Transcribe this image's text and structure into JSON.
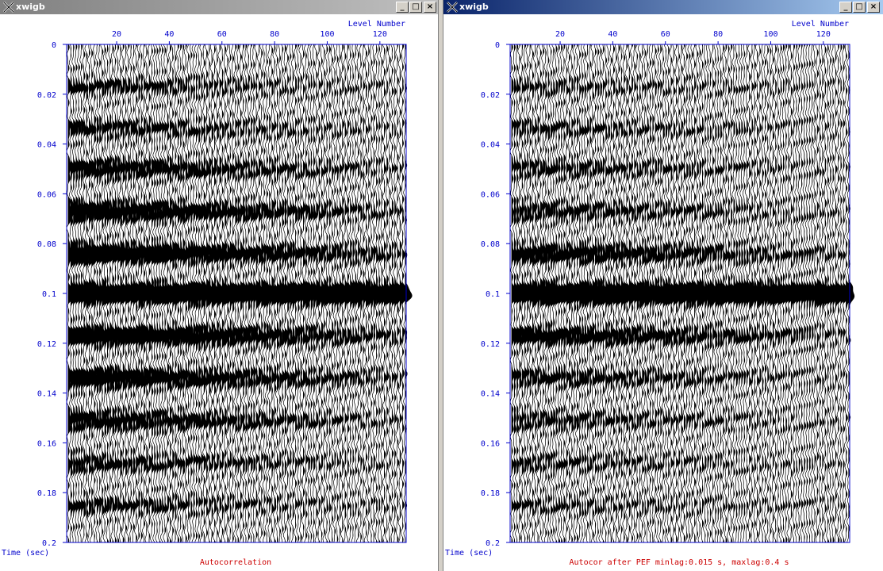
{
  "windows": [
    {
      "id": "left",
      "title": "xwigb",
      "active": false,
      "plot": {
        "top_axis_label": "Level Number",
        "x_ticks": [
          "20",
          "40",
          "60",
          "80",
          "100",
          "120"
        ],
        "y_ticks": [
          "0",
          "0.02",
          "0.04",
          "0.06",
          "0.08",
          "0.1",
          "0.12",
          "0.14",
          "0.16",
          "0.18",
          "0.2"
        ],
        "y_axis_label": "Time (sec)",
        "caption": "Autocorrelation"
      }
    },
    {
      "id": "right",
      "title": "xwigb",
      "active": true,
      "plot": {
        "top_axis_label": "Level Number",
        "x_ticks": [
          "20",
          "40",
          "60",
          "80",
          "100",
          "120"
        ],
        "y_ticks": [
          "0",
          "0.02",
          "0.04",
          "0.06",
          "0.08",
          "0.1",
          "0.12",
          "0.14",
          "0.16",
          "0.18",
          "0.2"
        ],
        "y_axis_label": "Time (sec)",
        "caption": "Autocor after PEF minlag:0.015 s, maxlag:0.4 s"
      }
    }
  ],
  "window_controls": {
    "minimize": "_",
    "maximize": "□",
    "close": "×"
  },
  "colors": {
    "axis": "#0000cc",
    "caption": "#cc0000",
    "traces": "#000000",
    "active_title": "#0a246a",
    "inactive_title": "#808080"
  },
  "chart_data": [
    {
      "type": "wiggle",
      "title": "Autocorrelation",
      "xlabel": "Level Number",
      "ylabel": "Time (sec)",
      "xlim": [
        1,
        130
      ],
      "ylim": [
        0,
        0.2
      ],
      "trace_count": 130,
      "event_times": [
        0.017,
        0.034,
        0.05,
        0.067,
        0.084,
        0.1,
        0.117,
        0.134,
        0.151,
        0.168,
        0.185
      ],
      "event_strength": [
        0.35,
        0.4,
        0.55,
        0.7,
        0.85,
        1.0,
        0.85,
        0.7,
        0.55,
        0.4,
        0.35
      ]
    },
    {
      "type": "wiggle",
      "title": "Autocor after PEF minlag:0.015 s, maxlag:0.4 s",
      "xlabel": "Level Number",
      "ylabel": "Time (sec)",
      "xlim": [
        1,
        130
      ],
      "ylim": [
        0,
        0.2
      ],
      "trace_count": 130,
      "event_times": [
        0.017,
        0.034,
        0.05,
        0.067,
        0.084,
        0.1,
        0.117,
        0.134,
        0.151,
        0.168,
        0.185
      ],
      "event_strength": [
        0.25,
        0.3,
        0.35,
        0.4,
        0.6,
        1.0,
        0.6,
        0.4,
        0.35,
        0.3,
        0.25
      ]
    }
  ]
}
